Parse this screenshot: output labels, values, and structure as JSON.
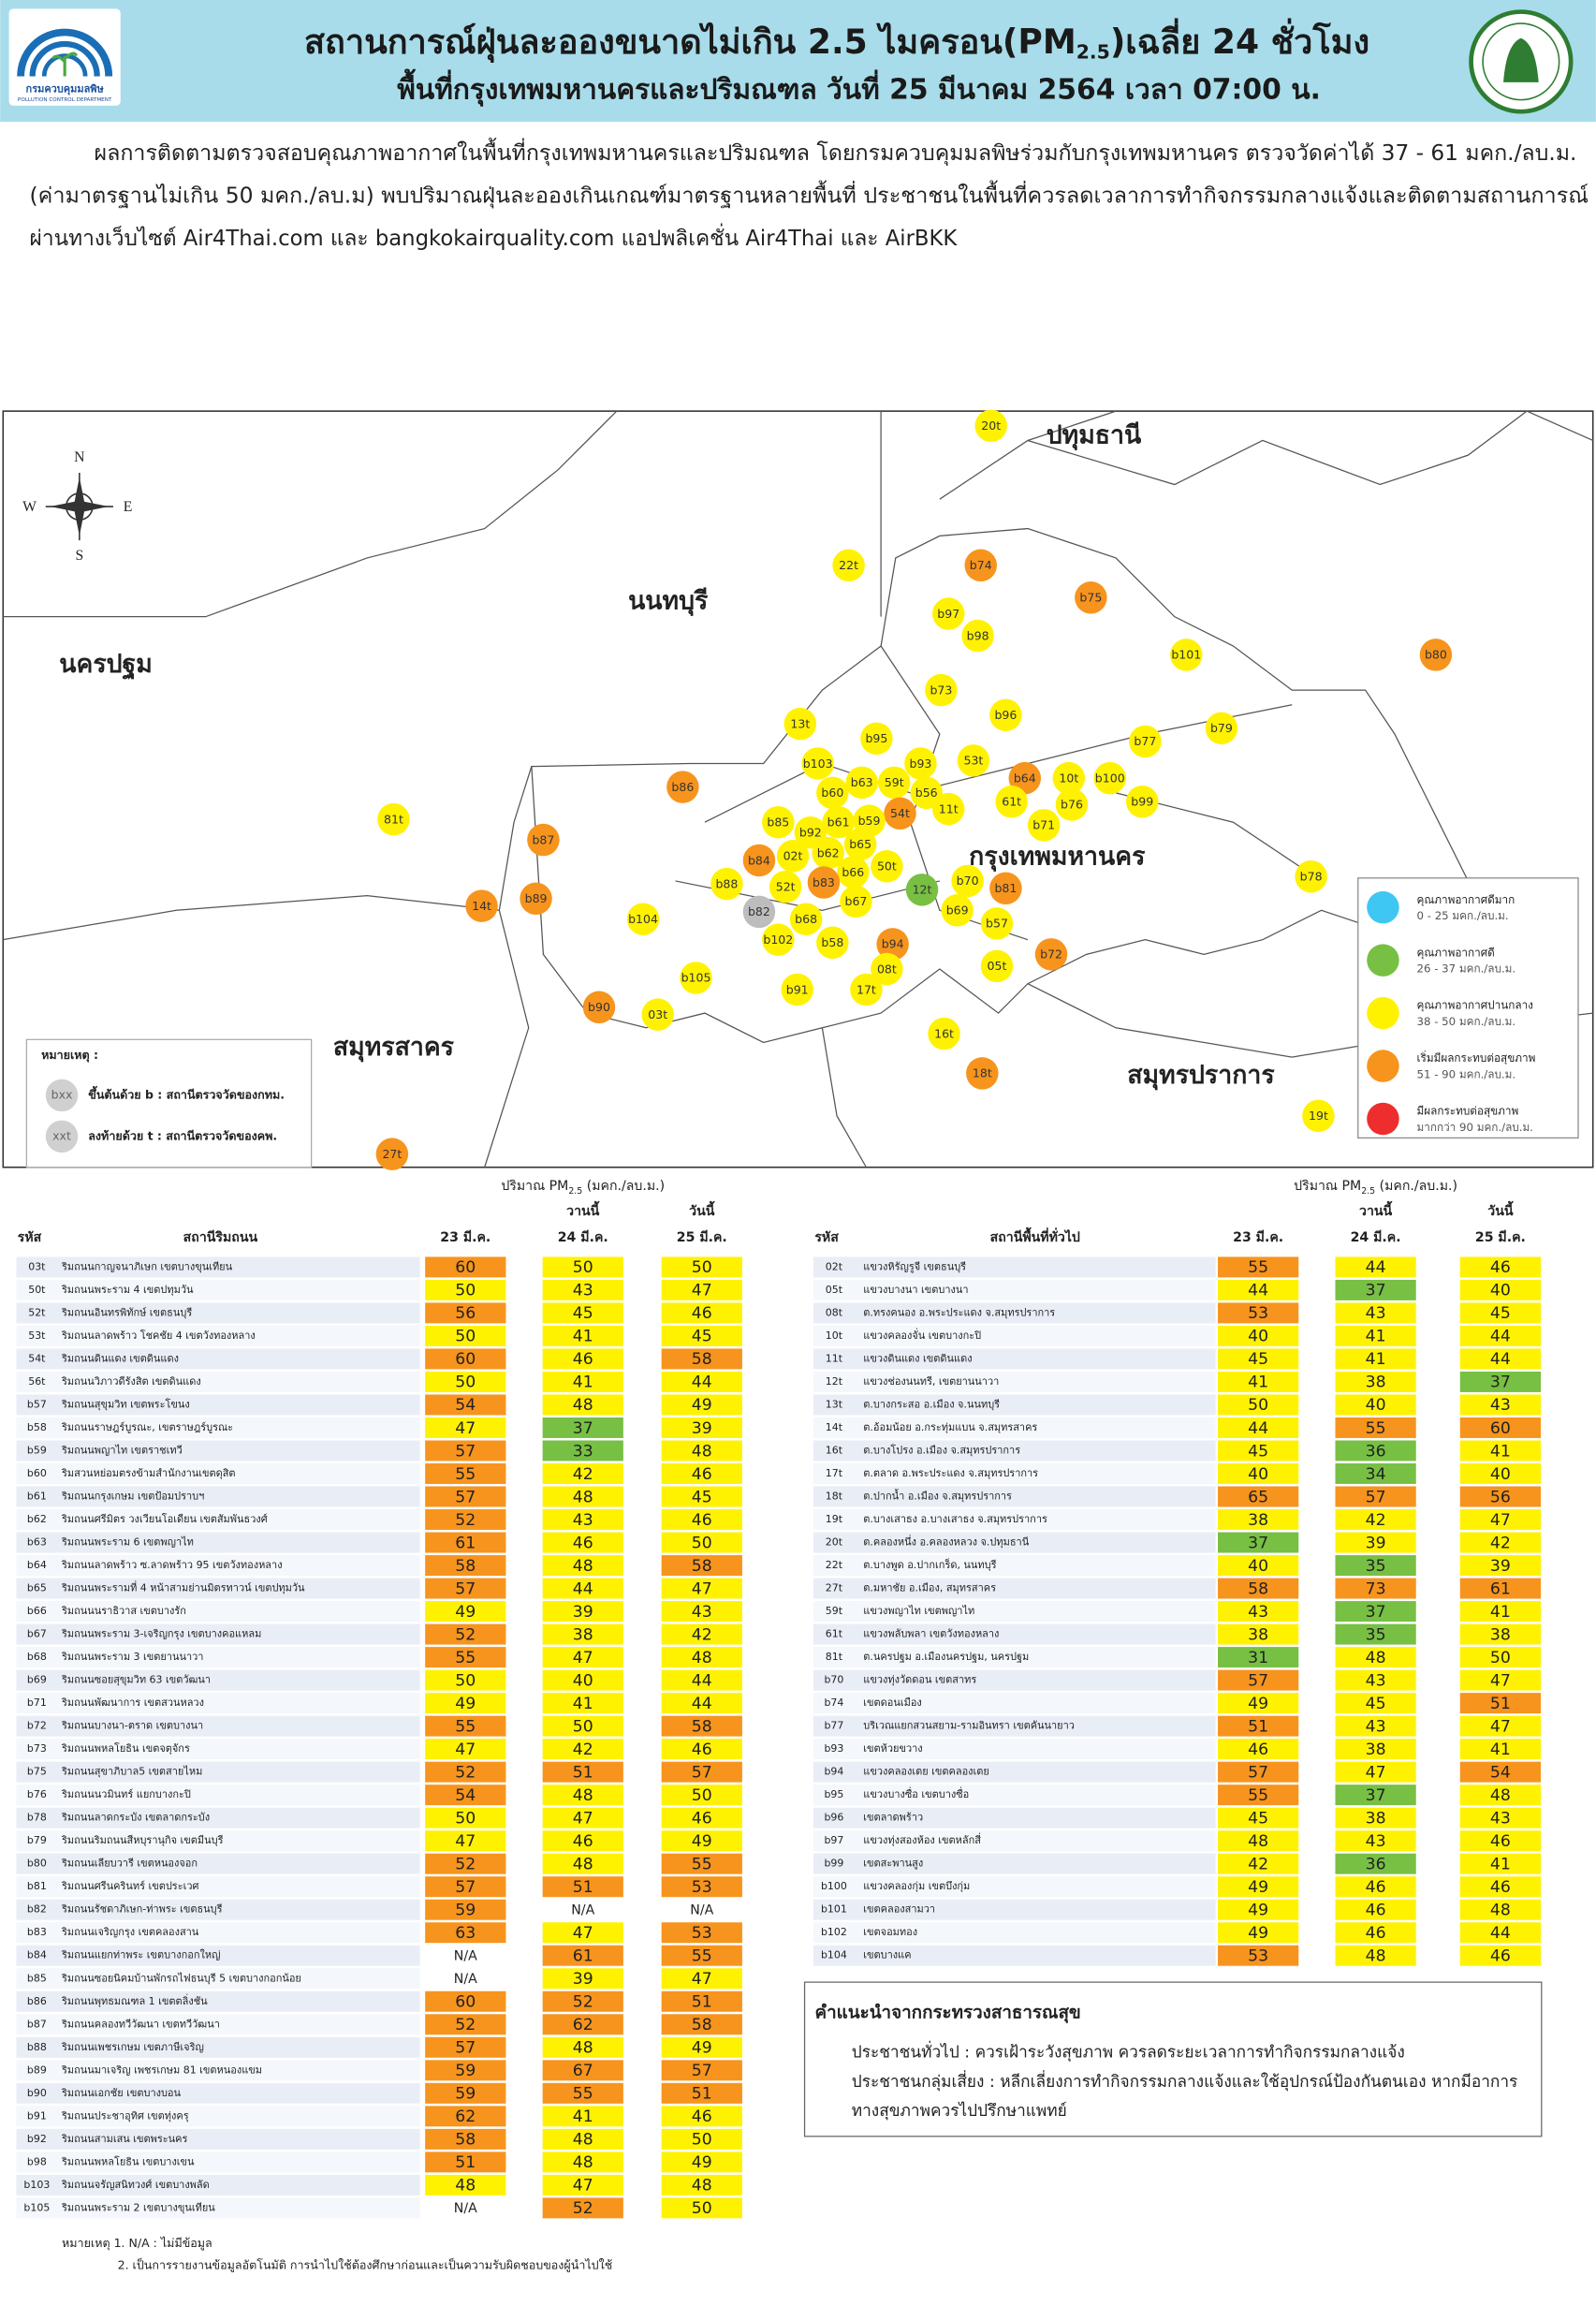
{
  "header": {
    "title_parts": [
      "สถานการณ์ฝุ่นละอองขนาดไม่เกิน 2.5 ไมครอน(PM",
      "2.5",
      ")เฉลี่ย 24 ชั่วโมง"
    ],
    "subtitle": "พื้นที่กรุงเทพมหานครและปริมณฑล วันที่ 25 มีนาคม 2564 เวลา 07:00 น.",
    "logo_text": "กรมควบคุมมลพิษ",
    "logo_subtext": "POLLUTION CONTROL DEPARTMENT"
  },
  "summary": [
    "ผลการติดตามตรวจสอบคุณภาพอากาศในพื้นที่กรุงเทพมหานครและปริมณฑล โดยกรมควบคุมมลพิษร่วมกับกรุงเทพมหานคร ตรวจวัดค่าได้ 37 - 61 มคก./ลบ.ม.",
    "(ค่ามาตรฐานไม่เกิน 50 มคก./ลบ.ม) พบปริมาณฝุ่นละอองเกินเกณฑ์มาตรฐานหลายพื้นที่ ประชาชนในพื้นที่ควรลดเวลาการทำกิจกรรมกลางแจ้งและติดตามสถานการณ์",
    "ผ่านทางเว็บไซต์ Air4Thai.com และ bangkokairquality.com แอปพลิเคชั่น Air4Thai และ AirBKK"
  ],
  "map": {
    "compass": {
      "n": "N",
      "s": "S",
      "e": "E",
      "w": "W"
    },
    "regions": [
      "ปทุมธานี",
      "นนทบุรี",
      "นครปฐม",
      "กรุงเทพมหานคร",
      "สมุทรสาคร",
      "สมุทรปราการ"
    ],
    "stations": [
      {
        "label": "20t",
        "color": "#fff200"
      },
      {
        "label": "22t",
        "color": "#fff200"
      },
      {
        "label": "b74",
        "color": "#f7941d"
      },
      {
        "label": "b75",
        "color": "#f7941d"
      },
      {
        "label": "b97",
        "color": "#fff200"
      },
      {
        "label": "b98",
        "color": "#fff200"
      },
      {
        "label": "b101",
        "color": "#fff200"
      },
      {
        "label": "b80",
        "color": "#f7941d"
      },
      {
        "label": "b73",
        "color": "#fff200"
      },
      {
        "label": "b96",
        "color": "#fff200"
      },
      {
        "label": "13t",
        "color": "#fff200"
      },
      {
        "label": "b79",
        "color": "#fff200"
      },
      {
        "label": "b77",
        "color": "#fff200"
      },
      {
        "label": "b95",
        "color": "#fff200"
      },
      {
        "label": "b103",
        "color": "#fff200"
      },
      {
        "label": "b93",
        "color": "#fff200"
      },
      {
        "label": "53t",
        "color": "#fff200"
      },
      {
        "label": "b64",
        "color": "#f7941d"
      },
      {
        "label": "10t",
        "color": "#fff200"
      },
      {
        "label": "b100",
        "color": "#fff200"
      },
      {
        "label": "b63",
        "color": "#fff200"
      },
      {
        "label": "59t",
        "color": "#fff200"
      },
      {
        "label": "b56",
        "color": "#fff200"
      },
      {
        "label": "b60",
        "color": "#fff200"
      },
      {
        "label": "61t",
        "color": "#fff200"
      },
      {
        "label": "b76",
        "color": "#fff200"
      },
      {
        "label": "b99",
        "color": "#fff200"
      },
      {
        "label": "b86",
        "color": "#f7941d"
      },
      {
        "label": "11t",
        "color": "#fff200"
      },
      {
        "label": "54t",
        "color": "#f7941d"
      },
      {
        "label": "b61",
        "color": "#fff200"
      },
      {
        "label": "b59",
        "color": "#fff200"
      },
      {
        "label": "b85",
        "color": "#fff200"
      },
      {
        "label": "b71",
        "color": "#fff200"
      },
      {
        "label": "b92",
        "color": "#fff200"
      },
      {
        "label": "81t",
        "color": "#fff200"
      },
      {
        "label": "b87",
        "color": "#f7941d"
      },
      {
        "label": "b65",
        "color": "#fff200"
      },
      {
        "label": "02t",
        "color": "#fff200"
      },
      {
        "label": "b62",
        "color": "#fff200"
      },
      {
        "label": "b84",
        "color": "#f7941d"
      },
      {
        "label": "50t",
        "color": "#fff200"
      },
      {
        "label": "b66",
        "color": "#fff200"
      },
      {
        "label": "b88",
        "color": "#fff200"
      },
      {
        "label": "52t",
        "color": "#fff200"
      },
      {
        "label": "b83",
        "color": "#f7941d"
      },
      {
        "label": "b70",
        "color": "#fff200"
      },
      {
        "label": "12t",
        "color": "#77c043"
      },
      {
        "label": "b81",
        "color": "#f7941d"
      },
      {
        "label": "b78",
        "color": "#fff200"
      },
      {
        "label": "14t",
        "color": "#f7941d"
      },
      {
        "label": "b89",
        "color": "#f7941d"
      },
      {
        "label": "b67",
        "color": "#fff200"
      },
      {
        "label": "b82",
        "color": "#bdbdbd"
      },
      {
        "label": "b69",
        "color": "#fff200"
      },
      {
        "label": "b68",
        "color": "#fff200"
      },
      {
        "label": "b57",
        "color": "#fff200"
      },
      {
        "label": "b104",
        "color": "#fff200"
      },
      {
        "label": "b102",
        "color": "#fff200"
      },
      {
        "label": "b58",
        "color": "#fff200"
      },
      {
        "label": "b94",
        "color": "#f7941d"
      },
      {
        "label": "b72",
        "color": "#f7941d"
      },
      {
        "label": "08t",
        "color": "#fff200"
      },
      {
        "label": "05t",
        "color": "#fff200"
      },
      {
        "label": "b105",
        "color": "#fff200"
      },
      {
        "label": "b91",
        "color": "#fff200"
      },
      {
        "label": "17t",
        "color": "#fff200"
      },
      {
        "label": "b90",
        "color": "#f7941d"
      },
      {
        "label": "03t",
        "color": "#fff200"
      },
      {
        "label": "16t",
        "color": "#fff200"
      },
      {
        "label": "18t",
        "color": "#f7941d"
      },
      {
        "label": "19t",
        "color": "#fff200"
      },
      {
        "label": "27t",
        "color": "#f7941d"
      }
    ],
    "legend": [
      {
        "label": "คุณภาพอากาศดีมาก",
        "range": "0 - 25 มคก./ลบ.ม.",
        "color": "#3fc7f4",
        "max": 25
      },
      {
        "label": "คุณภาพอากาศดี",
        "range": "26 - 37 มคก./ลบ.ม.",
        "color": "#77c043",
        "max": 37
      },
      {
        "label": "คุณภาพอากาศปานกลาง",
        "range": "38 - 50 มคก./ลบ.ม.",
        "color": "#fff200",
        "max": 50
      },
      {
        "label": "เริ่มมีผลกระทบต่อสุขภาพ",
        "range": "51 - 90 มคก./ลบ.ม.",
        "color": "#f7941d",
        "max": 90
      },
      {
        "label": "มีผลกระทบต่อสุขภาพ",
        "range": "มากกว่า 90 มคก./ลบ.ม.",
        "color": "#ee2e2e"
      }
    ],
    "note": {
      "title": "หมายเหตุ :",
      "items": [
        {
          "badge": "bxx",
          "text": "ขึ้นต้นด้วย b : สถานีตรวจวัดของกทม."
        },
        {
          "badge": "xxt",
          "text": "ลงท้ายด้วย t : สถานีตรวจวัดของคพ."
        }
      ]
    }
  },
  "tables": [
    {
      "unit_parts": [
        "ปริมาณ PM",
        "2.5",
        " (มคก./ลบ.ม.)"
      ],
      "yesterday": "วานนี้",
      "today": "วันนี้",
      "columns": [
        "รหัส",
        "สถานีริมถนน",
        "23 มี.ค.",
        "24 มี.ค.",
        "25 มี.ค."
      ],
      "rows": [
        [
          "03t",
          "ริมถนนกาญจนาภิเษก เขตบางขุนเทียน",
          60,
          50,
          50
        ],
        [
          "50t",
          "ริมถนนพระราม 4 เขตปทุมวัน",
          50,
          43,
          47
        ],
        [
          "52t",
          "ริมถนนอินทรพิทักษ์ เขตธนบุรี",
          56,
          45,
          46
        ],
        [
          "53t",
          "ริมถนนลาดพร้าว โชคชัย 4 เขตวังทองหลาง",
          50,
          41,
          45
        ],
        [
          "54t",
          "ริมถนนดินแดง เขตดินแดง",
          60,
          46,
          58
        ],
        [
          "56t",
          "ริมถนนวิภาวดีรังสิต เขตดินแดง",
          50,
          41,
          44
        ],
        [
          "b57",
          "ริมถนนสุขุมวิท เขตพระโขนง",
          54,
          48,
          49
        ],
        [
          "b58",
          "ริมถนนราษฎร์บูรณะ, เขตราษฎร์บูรณะ",
          47,
          37,
          39
        ],
        [
          "b59",
          "ริมถนนพญาไท เขตราชเทวี",
          57,
          33,
          48
        ],
        [
          "b60",
          "ริมสวนหย่อมตรงข้ามสำนักงานเขตดุสิต",
          55,
          42,
          46
        ],
        [
          "b61",
          "ริมถนนกรุงเกษม เขตป้อมปราบฯ",
          57,
          48,
          45
        ],
        [
          "b62",
          "ริมถนนศรีมิตร วงเวียนโอเดียน เขตสัมพันธวงศ์",
          52,
          43,
          46
        ],
        [
          "b63",
          "ริมถนนพระราม 6 เขตพญาไท",
          61,
          46,
          50
        ],
        [
          "b64",
          "ริมถนนลาดพร้าว ซ.ลาดพร้าว 95 เขตวังทองหลาง",
          58,
          48,
          58
        ],
        [
          "b65",
          "ริมถนนพระรามที่ 4 หน้าสามย่านมิตรทาวน์ เขตปทุมวัน",
          57,
          44,
          47
        ],
        [
          "b66",
          "ริมถนนนราธิวาส เขตบางรัก",
          49,
          39,
          43
        ],
        [
          "b67",
          "ริมถนนพระราม 3-เจริญกรุง เขตบางคอแหลม",
          52,
          38,
          42
        ],
        [
          "b68",
          "ริมถนนพระราม 3 เขตยานนาวา",
          55,
          47,
          48
        ],
        [
          "b69",
          "ริมถนนซอยสุขุมวิท 63 เขตวัฒนา",
          50,
          40,
          44
        ],
        [
          "b71",
          "ริมถนนพัฒนาการ เขตสวนหลวง",
          49,
          41,
          44
        ],
        [
          "b72",
          "ริมถนนบางนา-ตราด เขตบางนา",
          55,
          50,
          58
        ],
        [
          "b73",
          "ริมถนนพหลโยธิน เขตจตุจักร",
          47,
          42,
          46
        ],
        [
          "b75",
          "ริมถนนสุขาภิบาล5 เขตสายไหม",
          52,
          51,
          57
        ],
        [
          "b76",
          "ริมถนนนวมินทร์ แยกบางกะปิ",
          54,
          48,
          50
        ],
        [
          "b78",
          "ริมถนนลาดกระบัง เขตลาดกระบัง",
          50,
          47,
          46
        ],
        [
          "b79",
          "ริมถนนริมถนนสีหบุรานุกิจ เขตมีนบุรี",
          47,
          46,
          49
        ],
        [
          "b80",
          "ริมถนนเลียบวารี เขตหนองจอก",
          52,
          48,
          55
        ],
        [
          "b81",
          "ริมถนนศรีนครินทร์ เขตประเวศ",
          57,
          51,
          53
        ],
        [
          "b82",
          "ริมถนนรัชดาภิเษก-ท่าพระ เขตธนบุรี",
          59,
          "N/A",
          "N/A"
        ],
        [
          "b83",
          "ริมถนนเจริญกรุง เขตคลองสาน",
          63,
          47,
          53
        ],
        [
          "b84",
          "ริมถนนแยกท่าพระ เขตบางกอกใหญ่",
          "N/A",
          61,
          55
        ],
        [
          "b85",
          "ริมถนนซอยนิคมบ้านพักรถไฟธนบุรี 5 เขตบางกอกน้อย",
          "N/A",
          39,
          47
        ],
        [
          "b86",
          "ริมถนนพุทธมณฑล 1 เขตตลิ่งชัน",
          60,
          52,
          51
        ],
        [
          "b87",
          "ริมถนนคลองทวีวัฒนา เขตทวีวัฒนา",
          52,
          62,
          58
        ],
        [
          "b88",
          "ริมถนนเพชรเกษม เขตภาษีเจริญ",
          57,
          48,
          49
        ],
        [
          "b89",
          "ริมถนนมาเจริญ เพชรเกษม 81 เขตหนองแขม",
          59,
          67,
          57
        ],
        [
          "b90",
          "ริมถนนเอกชัย เขตบางบอน",
          59,
          55,
          51
        ],
        [
          "b91",
          "ริมถนนประชาอุทิศ เขตทุ่งครุ",
          62,
          41,
          46
        ],
        [
          "b92",
          "ริมถนนสามเสน เขตพระนคร",
          58,
          48,
          50
        ],
        [
          "b98",
          "ริมถนนพหลโยธิน เขตบางเขน",
          51,
          48,
          49
        ],
        [
          "b103",
          "ริมถนนจรัญสนิทวงศ์ เขตบางพลัด",
          48,
          47,
          48
        ],
        [
          "b105",
          "ริมถนนพระราม 2 เขตบางขุนเทียน",
          "N/A",
          52,
          50
        ]
      ]
    },
    {
      "unit_parts": [
        "ปริมาณ PM",
        "2.5",
        " (มคก./ลบ.ม.)"
      ],
      "yesterday": "วานนี้",
      "today": "วันนี้",
      "columns": [
        "รหัส",
        "สถานีพื้นที่ทั่วไป",
        "23 มี.ค.",
        "24 มี.ค.",
        "25 มี.ค."
      ],
      "rows": [
        [
          "02t",
          "แขวงหิรัญรูจี เขตธนบุรี",
          55,
          44,
          46
        ],
        [
          "05t",
          "แขวงบางนา เขตบางนา",
          44,
          37,
          40
        ],
        [
          "08t",
          "ต.ทรงคนอง อ.พระประแดง จ.สมุทรปราการ",
          53,
          43,
          45
        ],
        [
          "10t",
          "แขวงคลองจั่น เขตบางกะปิ",
          40,
          41,
          44
        ],
        [
          "11t",
          "แขวงดินแดง เขตดินแดง",
          45,
          41,
          44
        ],
        [
          "12t",
          "แขวงช่องนนทรี, เขตยานนาวา",
          41,
          38,
          37
        ],
        [
          "13t",
          "ต.บางกระสอ อ.เมือง จ.นนทบุรี",
          50,
          40,
          43
        ],
        [
          "14t",
          "ต.อ้อมน้อย อ.กระทุ่มแบน จ.สมุทรสาคร",
          44,
          55,
          60
        ],
        [
          "16t",
          "ต.บางโปรง อ.เมือง จ.สมุทรปราการ",
          45,
          36,
          41
        ],
        [
          "17t",
          "ต.ตลาด อ.พระประแดง จ.สมุทรปราการ",
          40,
          34,
          40
        ],
        [
          "18t",
          "ต.ปากน้ำ อ.เมือง จ.สมุทรปราการ",
          65,
          57,
          56
        ],
        [
          "19t",
          "ต.บางเสาธง อ.บางเสาธง จ.สมุทรปราการ",
          38,
          42,
          47
        ],
        [
          "20t",
          "ต.คลองหนึ่ง อ.คลองหลวง จ.ปทุมธานี",
          37,
          39,
          42
        ],
        [
          "22t",
          "ต.บางพูด อ.ปากเกร็ด, นนทบุรี",
          40,
          35,
          39
        ],
        [
          "27t",
          "ต.มหาชัย อ.เมือง, สมุทรสาคร",
          58,
          73,
          61
        ],
        [
          "59t",
          "แขวงพญาไท เขตพญาไท",
          43,
          37,
          41
        ],
        [
          "61t",
          "แขวงพลับพลา เขตวังทองหลาง",
          38,
          35,
          38
        ],
        [
          "81t",
          "ต.นครปฐม อ.เมืองนครปฐม, นครปฐม",
          31,
          48,
          50
        ],
        [
          "b70",
          "แขวงทุ่งวัดดอน เขตสาทร",
          57,
          43,
          47
        ],
        [
          "b74",
          "เขตดอนเมือง",
          49,
          45,
          51
        ],
        [
          "b77",
          "บริเวณแยกสวนสยาม-รามอินทรา เขตคันนายาว",
          51,
          43,
          47
        ],
        [
          "b93",
          "เขตห้วยขวาง",
          46,
          38,
          41
        ],
        [
          "b94",
          "แขวงคลองเตย เขตคลองเตย",
          57,
          47,
          54
        ],
        [
          "b95",
          "แขวงบางซื่อ เขตบางซื่อ",
          55,
          37,
          48
        ],
        [
          "b96",
          "เขตลาดพร้าว",
          45,
          38,
          43
        ],
        [
          "b97",
          "แขวงทุ่งสองห้อง เขตหลักสี่",
          48,
          43,
          46
        ],
        [
          "b99",
          "เขตสะพานสูง",
          42,
          36,
          41
        ],
        [
          "b100",
          "แขวงคลองกุ่ม เขตบึงกุ่ม",
          49,
          46,
          46
        ],
        [
          "b101",
          "เขตคลองสามวา",
          49,
          46,
          48
        ],
        [
          "b102",
          "เขตจอมทอง",
          49,
          46,
          44
        ],
        [
          "b104",
          "เขตบางแค",
          53,
          48,
          46
        ]
      ]
    }
  ],
  "advice": {
    "title": "คำแนะนำจากกระทรวงสาธารณสุข",
    "lines": [
      "ประชาชนทั่วไป : ควรเฝ้าระวังสุขภาพ ควรลดระยะเวลาการทำกิจกรรมกลางแจ้ง",
      "ประชาชนกลุ่มเสี่ยง : หลีกเลี่ยงการทำกิจกรรมกลางแจ้งและใช้อุปกรณ์ป้องกันตนเอง หากมีอาการ",
      "ทางสุขภาพควรไปปรึกษาแพทย์"
    ]
  },
  "footnotes": [
    "หมายเหตุ 1. N/A : ไม่มีข้อมูล",
    "2. เป็นการรายงานข้อมูลอัตโนมัติ การนำไปใช้ต้องศึกษาก่อนและเป็นความรับผิดชอบของผู้นำไปใช้"
  ]
}
